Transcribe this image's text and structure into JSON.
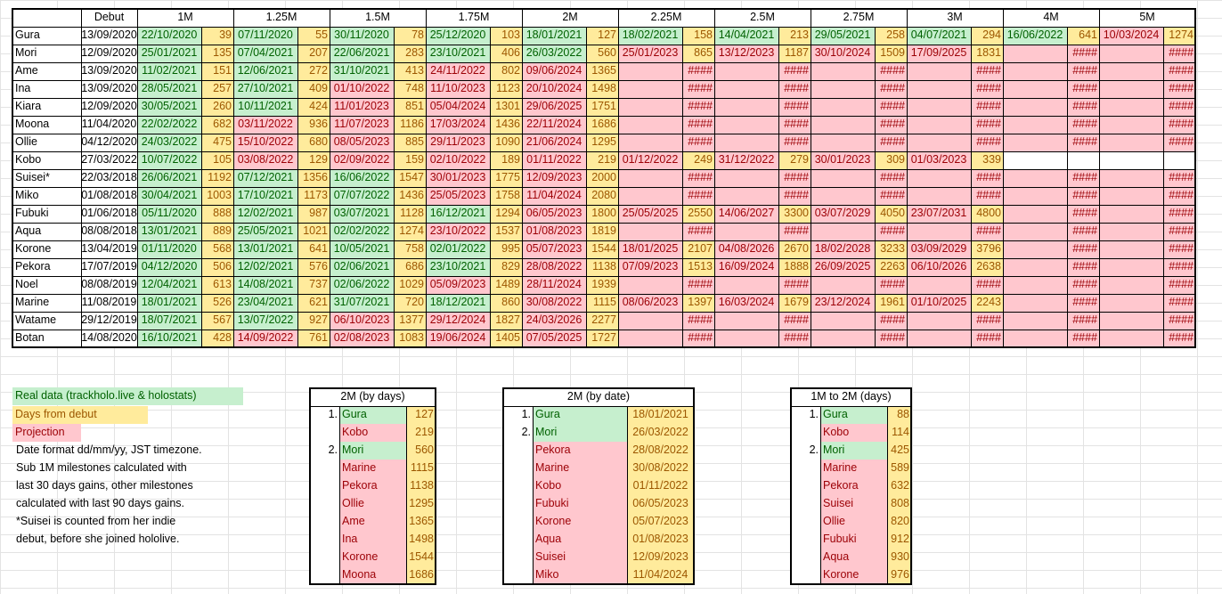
{
  "header": {
    "debut": "Debut",
    "milestones": [
      "1M",
      "1.25M",
      "1.5M",
      "1.75M",
      "2M",
      "2.25M",
      "2.5M",
      "2.75M",
      "3M",
      "4M",
      "5M"
    ]
  },
  "rows": [
    {
      "name": "Gura",
      "debut": "13/09/2020",
      "cells": [
        [
          "22/10/2020",
          "39",
          "g"
        ],
        [
          "07/11/2020",
          "55",
          "g"
        ],
        [
          "30/11/2020",
          "78",
          "g"
        ],
        [
          "25/12/2020",
          "103",
          "g"
        ],
        [
          "18/01/2021",
          "127",
          "g"
        ],
        [
          "18/02/2021",
          "158",
          "g"
        ],
        [
          "14/04/2021",
          "213",
          "g"
        ],
        [
          "29/05/2021",
          "258",
          "g"
        ],
        [
          "04/07/2021",
          "294",
          "g"
        ],
        [
          "16/06/2022",
          "641",
          "g"
        ],
        [
          "10/03/2024",
          "1274",
          "r"
        ]
      ]
    },
    {
      "name": "Mori",
      "debut": "12/09/2020",
      "cells": [
        [
          "25/01/2021",
          "135",
          "g"
        ],
        [
          "07/04/2021",
          "207",
          "g"
        ],
        [
          "22/06/2021",
          "283",
          "g"
        ],
        [
          "23/10/2021",
          "406",
          "g"
        ],
        [
          "26/03/2022",
          "560",
          "g"
        ],
        [
          "25/01/2023",
          "865",
          "r"
        ],
        [
          "13/12/2023",
          "1187",
          "r"
        ],
        [
          "30/10/2024",
          "1509",
          "r"
        ],
        [
          "17/09/2025",
          "1831",
          "r"
        ],
        [
          "",
          "####",
          "r"
        ],
        [
          "",
          "####",
          "r"
        ]
      ]
    },
    {
      "name": "Ame",
      "debut": "13/09/2020",
      "cells": [
        [
          "11/02/2021",
          "151",
          "g"
        ],
        [
          "12/06/2021",
          "272",
          "g"
        ],
        [
          "31/10/2021",
          "413",
          "g"
        ],
        [
          "24/11/2022",
          "802",
          "r"
        ],
        [
          "09/06/2024",
          "1365",
          "r"
        ],
        [
          "",
          "####",
          "r"
        ],
        [
          "",
          "####",
          "r"
        ],
        [
          "",
          "####",
          "r"
        ],
        [
          "",
          "####",
          "r"
        ],
        [
          "",
          "####",
          "r"
        ],
        [
          "",
          "####",
          "r"
        ]
      ]
    },
    {
      "name": "Ina",
      "debut": "13/09/2020",
      "cells": [
        [
          "28/05/2021",
          "257",
          "g"
        ],
        [
          "27/10/2021",
          "409",
          "g"
        ],
        [
          "01/10/2022",
          "748",
          "r"
        ],
        [
          "11/10/2023",
          "1123",
          "r"
        ],
        [
          "20/10/2024",
          "1498",
          "r"
        ],
        [
          "",
          "####",
          "r"
        ],
        [
          "",
          "####",
          "r"
        ],
        [
          "",
          "####",
          "r"
        ],
        [
          "",
          "####",
          "r"
        ],
        [
          "",
          "####",
          "r"
        ],
        [
          "",
          "####",
          "r"
        ]
      ]
    },
    {
      "name": "Kiara",
      "debut": "12/09/2020",
      "cells": [
        [
          "30/05/2021",
          "260",
          "g"
        ],
        [
          "10/11/2021",
          "424",
          "g"
        ],
        [
          "11/01/2023",
          "851",
          "r"
        ],
        [
          "05/04/2024",
          "1301",
          "r"
        ],
        [
          "29/06/2025",
          "1751",
          "r"
        ],
        [
          "",
          "####",
          "r"
        ],
        [
          "",
          "####",
          "r"
        ],
        [
          "",
          "####",
          "r"
        ],
        [
          "",
          "####",
          "r"
        ],
        [
          "",
          "####",
          "r"
        ],
        [
          "",
          "####",
          "r"
        ]
      ]
    },
    {
      "name": "Moona",
      "debut": "11/04/2020",
      "cells": [
        [
          "22/02/2022",
          "682",
          "g"
        ],
        [
          "03/11/2022",
          "936",
          "r"
        ],
        [
          "11/07/2023",
          "1186",
          "r"
        ],
        [
          "17/03/2024",
          "1436",
          "r"
        ],
        [
          "22/11/2024",
          "1686",
          "r"
        ],
        [
          "",
          "####",
          "r"
        ],
        [
          "",
          "####",
          "r"
        ],
        [
          "",
          "####",
          "r"
        ],
        [
          "",
          "####",
          "r"
        ],
        [
          "",
          "####",
          "r"
        ],
        [
          "",
          "####",
          "r"
        ]
      ]
    },
    {
      "name": "Ollie",
      "debut": "04/12/2020",
      "cells": [
        [
          "24/03/2022",
          "475",
          "g"
        ],
        [
          "15/10/2022",
          "680",
          "r"
        ],
        [
          "08/05/2023",
          "885",
          "r"
        ],
        [
          "29/11/2023",
          "1090",
          "r"
        ],
        [
          "21/06/2024",
          "1295",
          "r"
        ],
        [
          "",
          "####",
          "r"
        ],
        [
          "",
          "####",
          "r"
        ],
        [
          "",
          "####",
          "r"
        ],
        [
          "",
          "####",
          "r"
        ],
        [
          "",
          "####",
          "r"
        ],
        [
          "",
          "####",
          "r"
        ]
      ]
    },
    {
      "name": "Kobo",
      "debut": "27/03/2022",
      "cells": [
        [
          "10/07/2022",
          "105",
          "g"
        ],
        [
          "03/08/2022",
          "129",
          "r"
        ],
        [
          "02/09/2022",
          "159",
          "r"
        ],
        [
          "02/10/2022",
          "189",
          "r"
        ],
        [
          "01/11/2022",
          "219",
          "r"
        ],
        [
          "01/12/2022",
          "249",
          "r"
        ],
        [
          "31/12/2022",
          "279",
          "r"
        ],
        [
          "30/01/2023",
          "309",
          "r"
        ],
        [
          "01/03/2023",
          "339",
          "r"
        ],
        [
          "",
          "",
          "w"
        ],
        [
          "",
          "",
          "w"
        ]
      ]
    },
    {
      "name": "Suisei*",
      "debut": "22/03/2018",
      "cells": [
        [
          "26/06/2021",
          "1192",
          "g"
        ],
        [
          "07/12/2021",
          "1356",
          "g"
        ],
        [
          "16/06/2022",
          "1547",
          "g"
        ],
        [
          "30/01/2023",
          "1775",
          "r"
        ],
        [
          "12/09/2023",
          "2000",
          "r"
        ],
        [
          "",
          "####",
          "r"
        ],
        [
          "",
          "####",
          "r"
        ],
        [
          "",
          "####",
          "r"
        ],
        [
          "",
          "####",
          "r"
        ],
        [
          "",
          "####",
          "r"
        ],
        [
          "",
          "####",
          "r"
        ]
      ]
    },
    {
      "name": "Miko",
      "debut": "01/08/2018",
      "cells": [
        [
          "30/04/2021",
          "1003",
          "g"
        ],
        [
          "17/10/2021",
          "1173",
          "g"
        ],
        [
          "07/07/2022",
          "1436",
          "g"
        ],
        [
          "25/05/2023",
          "1758",
          "r"
        ],
        [
          "11/04/2024",
          "2080",
          "r"
        ],
        [
          "",
          "####",
          "r"
        ],
        [
          "",
          "####",
          "r"
        ],
        [
          "",
          "####",
          "r"
        ],
        [
          "",
          "####",
          "r"
        ],
        [
          "",
          "####",
          "r"
        ],
        [
          "",
          "####",
          "r"
        ]
      ]
    },
    {
      "name": "Fubuki",
      "debut": "01/06/2018",
      "cells": [
        [
          "05/11/2020",
          "888",
          "g"
        ],
        [
          "12/02/2021",
          "987",
          "g"
        ],
        [
          "03/07/2021",
          "1128",
          "g"
        ],
        [
          "16/12/2021",
          "1294",
          "g"
        ],
        [
          "06/05/2023",
          "1800",
          "r"
        ],
        [
          "25/05/2025",
          "2550",
          "r"
        ],
        [
          "14/06/2027",
          "3300",
          "r"
        ],
        [
          "03/07/2029",
          "4050",
          "r"
        ],
        [
          "23/07/2031",
          "4800",
          "r"
        ],
        [
          "",
          "####",
          "r"
        ],
        [
          "",
          "####",
          "r"
        ]
      ]
    },
    {
      "name": "Aqua",
      "debut": "08/08/2018",
      "cells": [
        [
          "13/01/2021",
          "889",
          "g"
        ],
        [
          "25/05/2021",
          "1021",
          "g"
        ],
        [
          "02/02/2022",
          "1274",
          "g"
        ],
        [
          "23/10/2022",
          "1537",
          "r"
        ],
        [
          "01/08/2023",
          "1819",
          "r"
        ],
        [
          "",
          "####",
          "r"
        ],
        [
          "",
          "####",
          "r"
        ],
        [
          "",
          "####",
          "r"
        ],
        [
          "",
          "####",
          "r"
        ],
        [
          "",
          "####",
          "r"
        ],
        [
          "",
          "####",
          "r"
        ]
      ]
    },
    {
      "name": "Korone",
      "debut": "13/04/2019",
      "cells": [
        [
          "01/11/2020",
          "568",
          "g"
        ],
        [
          "13/01/2021",
          "641",
          "g"
        ],
        [
          "10/05/2021",
          "758",
          "g"
        ],
        [
          "02/01/2022",
          "995",
          "g"
        ],
        [
          "05/07/2023",
          "1544",
          "r"
        ],
        [
          "18/01/2025",
          "2107",
          "r"
        ],
        [
          "04/08/2026",
          "2670",
          "r"
        ],
        [
          "18/02/2028",
          "3233",
          "r"
        ],
        [
          "03/09/2029",
          "3796",
          "r"
        ],
        [
          "",
          "####",
          "r"
        ],
        [
          "",
          "####",
          "r"
        ]
      ]
    },
    {
      "name": "Pekora",
      "debut": "17/07/2019",
      "cells": [
        [
          "04/12/2020",
          "506",
          "g"
        ],
        [
          "12/02/2021",
          "576",
          "g"
        ],
        [
          "02/06/2021",
          "686",
          "g"
        ],
        [
          "23/10/2021",
          "829",
          "g"
        ],
        [
          "28/08/2022",
          "1138",
          "r"
        ],
        [
          "07/09/2023",
          "1513",
          "r"
        ],
        [
          "16/09/2024",
          "1888",
          "r"
        ],
        [
          "26/09/2025",
          "2263",
          "r"
        ],
        [
          "06/10/2026",
          "2638",
          "r"
        ],
        [
          "",
          "####",
          "r"
        ],
        [
          "",
          "####",
          "r"
        ]
      ]
    },
    {
      "name": "Noel",
      "debut": "08/08/2019",
      "cells": [
        [
          "12/04/2021",
          "613",
          "g"
        ],
        [
          "14/08/2021",
          "737",
          "g"
        ],
        [
          "02/06/2022",
          "1029",
          "g"
        ],
        [
          "05/09/2023",
          "1489",
          "r"
        ],
        [
          "28/11/2024",
          "1939",
          "r"
        ],
        [
          "",
          "####",
          "r"
        ],
        [
          "",
          "####",
          "r"
        ],
        [
          "",
          "####",
          "r"
        ],
        [
          "",
          "####",
          "r"
        ],
        [
          "",
          "####",
          "r"
        ],
        [
          "",
          "####",
          "r"
        ]
      ]
    },
    {
      "name": "Marine",
      "debut": "11/08/2019",
      "cells": [
        [
          "18/01/2021",
          "526",
          "g"
        ],
        [
          "23/04/2021",
          "621",
          "g"
        ],
        [
          "31/07/2021",
          "720",
          "g"
        ],
        [
          "18/12/2021",
          "860",
          "g"
        ],
        [
          "30/08/2022",
          "1115",
          "r"
        ],
        [
          "08/06/2023",
          "1397",
          "r"
        ],
        [
          "16/03/2024",
          "1679",
          "r"
        ],
        [
          "23/12/2024",
          "1961",
          "r"
        ],
        [
          "01/10/2025",
          "2243",
          "r"
        ],
        [
          "",
          "####",
          "r"
        ],
        [
          "",
          "####",
          "r"
        ]
      ]
    },
    {
      "name": "Watame",
      "debut": "29/12/2019",
      "cells": [
        [
          "18/07/2021",
          "567",
          "g"
        ],
        [
          "13/07/2022",
          "927",
          "g"
        ],
        [
          "06/10/2023",
          "1377",
          "r"
        ],
        [
          "29/12/2024",
          "1827",
          "r"
        ],
        [
          "24/03/2026",
          "2277",
          "r"
        ],
        [
          "",
          "####",
          "r"
        ],
        [
          "",
          "####",
          "r"
        ],
        [
          "",
          "####",
          "r"
        ],
        [
          "",
          "####",
          "r"
        ],
        [
          "",
          "####",
          "r"
        ],
        [
          "",
          "####",
          "r"
        ]
      ]
    },
    {
      "name": "Botan",
      "debut": "14/08/2020",
      "cells": [
        [
          "16/10/2021",
          "428",
          "g"
        ],
        [
          "14/09/2022",
          "761",
          "r"
        ],
        [
          "02/08/2023",
          "1083",
          "r"
        ],
        [
          "19/06/2024",
          "1405",
          "r"
        ],
        [
          "07/05/2025",
          "1727",
          "r"
        ],
        [
          "",
          "####",
          "r"
        ],
        [
          "",
          "####",
          "r"
        ],
        [
          "",
          "####",
          "r"
        ],
        [
          "",
          "####",
          "r"
        ],
        [
          "",
          "####",
          "r"
        ],
        [
          "",
          "####",
          "r"
        ]
      ]
    }
  ],
  "legend": {
    "real": "Real data (trackholo.live & holostats)",
    "days": "Days from debut",
    "projection": "Projection",
    "notes": [
      "Date format dd/mm/yy, JST timezone.",
      "Sub 1M milestones calculated with",
      "last 30 days gains, other milestones",
      "calculated with last 90 days gains.",
      "*Suisei is counted from her indie",
      "debut, before she joined hololive."
    ]
  },
  "tables": [
    {
      "title": "2M (by days)",
      "rows": [
        [
          "1.",
          "Gura",
          "127",
          "g"
        ],
        [
          "",
          "Kobo",
          "219",
          "r"
        ],
        [
          "2.",
          "Mori",
          "560",
          "g"
        ],
        [
          "",
          "Marine",
          "1115",
          "r"
        ],
        [
          "",
          "Pekora",
          "1138",
          "r"
        ],
        [
          "",
          "Ollie",
          "1295",
          "r"
        ],
        [
          "",
          "Ame",
          "1365",
          "r"
        ],
        [
          "",
          "Ina",
          "1498",
          "r"
        ],
        [
          "",
          "Korone",
          "1544",
          "r"
        ],
        [
          "",
          "Moona",
          "1686",
          "r"
        ]
      ]
    },
    {
      "title": "2M (by date)",
      "rows": [
        [
          "1.",
          "Gura",
          "18/01/2021",
          "g"
        ],
        [
          "2.",
          "Mori",
          "26/03/2022",
          "g"
        ],
        [
          "",
          "Pekora",
          "28/08/2022",
          "r"
        ],
        [
          "",
          "Marine",
          "30/08/2022",
          "r"
        ],
        [
          "",
          "Kobo",
          "01/11/2022",
          "r"
        ],
        [
          "",
          "Fubuki",
          "06/05/2023",
          "r"
        ],
        [
          "",
          "Korone",
          "05/07/2023",
          "r"
        ],
        [
          "",
          "Aqua",
          "01/08/2023",
          "r"
        ],
        [
          "",
          "Suisei",
          "12/09/2023",
          "r"
        ],
        [
          "",
          "Miko",
          "11/04/2024",
          "r"
        ]
      ]
    },
    {
      "title": "1M to 2M (days)",
      "rows": [
        [
          "1.",
          "Gura",
          "88",
          "g"
        ],
        [
          "",
          "Kobo",
          "114",
          "r"
        ],
        [
          "2.",
          "Mori",
          "425",
          "g"
        ],
        [
          "",
          "Marine",
          "589",
          "r"
        ],
        [
          "",
          "Pekora",
          "632",
          "r"
        ],
        [
          "",
          "Suisei",
          "808",
          "r"
        ],
        [
          "",
          "Ollie",
          "820",
          "r"
        ],
        [
          "",
          "Fubuki",
          "912",
          "r"
        ],
        [
          "",
          "Aqua",
          "930",
          "r"
        ],
        [
          "",
          "Korone",
          "976",
          "r"
        ]
      ]
    }
  ],
  "colors": {
    "green_fill": "#c6efce",
    "green_text": "#006100",
    "yellow_fill": "#ffeb9c",
    "yellow_text": "#9c5700",
    "red_fill": "#ffc7ce",
    "red_text": "#9c0006"
  }
}
